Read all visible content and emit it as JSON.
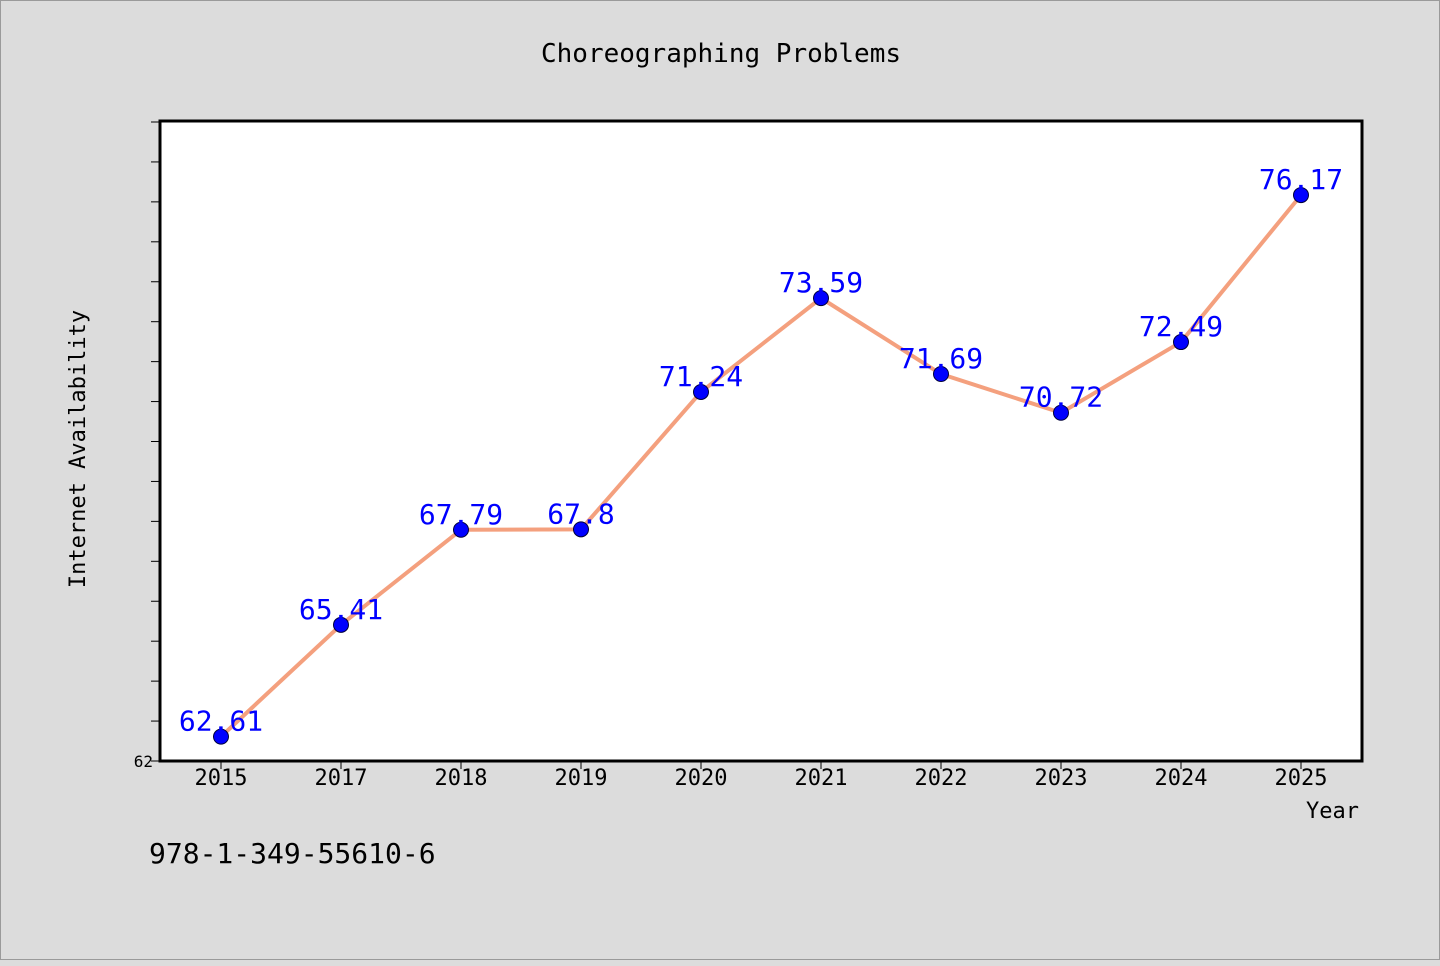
{
  "chart_data": {
    "type": "line",
    "title": "Choreographing Problems",
    "xlabel": "Year",
    "ylabel": "Internet Availability",
    "categories": [
      "2015",
      "2017",
      "2018",
      "2019",
      "2020",
      "2021",
      "2022",
      "2023",
      "2024",
      "2025"
    ],
    "values": [
      62.61,
      65.41,
      67.79,
      67.8,
      71.24,
      73.59,
      71.69,
      70.72,
      72.49,
      76.17
    ],
    "value_labels": [
      "62.61",
      "65.41",
      "67.79",
      "67.8",
      "71.24",
      "73.59",
      "71.69",
      "70.72",
      "72.49",
      "76.17"
    ],
    "ylim": [
      62,
      78
    ],
    "y_tick_labels": [
      "62"
    ],
    "grid": false,
    "line_color": "#f4a07e",
    "marker_color": "#0000ff",
    "label_color": "#0000ff"
  },
  "footer": {
    "isbn": "978-1-349-55610-6"
  }
}
